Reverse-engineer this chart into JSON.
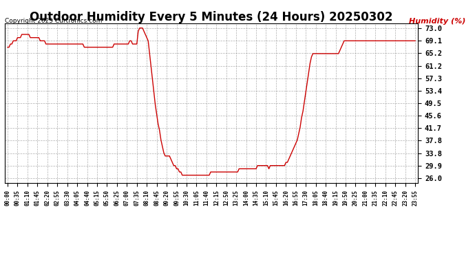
{
  "title": "Outdoor Humidity Every 5 Minutes (24 Hours) 20250302",
  "ylabel": "Humidity (%)",
  "copyright": "Copyright 2025 Curtronics.com",
  "line_color": "#cc0000",
  "ylabel_color": "#cc0000",
  "copyright_color": "#000000",
  "background_color": "#ffffff",
  "grid_color": "#999999",
  "title_fontsize": 12,
  "yticks": [
    26.0,
    29.9,
    33.8,
    37.8,
    41.7,
    45.6,
    49.5,
    53.4,
    57.3,
    61.2,
    65.2,
    69.1,
    73.0
  ],
  "ylim": [
    24.5,
    74.5
  ],
  "xtick_step": 7,
  "humidity_data": [
    67,
    67,
    68,
    68,
    69,
    69,
    69,
    70,
    70,
    70,
    71,
    71,
    71,
    71,
    71,
    71,
    70,
    70,
    70,
    70,
    70,
    70,
    70,
    69,
    69,
    69,
    69,
    68,
    68,
    68,
    68,
    68,
    68,
    68,
    68,
    68,
    68,
    68,
    68,
    68,
    68,
    68,
    68,
    68,
    68,
    68,
    68,
    68,
    68,
    68,
    68,
    68,
    68,
    68,
    67,
    67,
    67,
    67,
    67,
    67,
    67,
    67,
    67,
    67,
    67,
    67,
    67,
    67,
    67,
    67,
    67,
    67,
    67,
    67,
    67,
    68,
    68,
    68,
    68,
    68,
    68,
    68,
    68,
    68,
    68,
    68,
    69,
    69,
    68,
    68,
    68,
    68,
    72,
    73,
    73,
    73,
    72,
    71,
    70,
    69,
    65,
    61,
    57,
    53,
    49,
    46,
    43,
    41,
    38,
    36,
    34,
    33,
    33,
    33,
    33,
    32,
    31,
    30,
    30,
    29,
    29,
    28,
    28,
    27,
    27,
    27,
    27,
    27,
    27,
    27,
    27,
    27,
    27,
    27,
    27,
    27,
    27,
    27,
    27,
    27,
    27,
    27,
    27,
    28,
    28,
    28,
    28,
    28,
    28,
    28,
    28,
    28,
    28,
    28,
    28,
    28,
    28,
    28,
    28,
    28,
    28,
    28,
    28,
    29,
    29,
    29,
    29,
    29,
    29,
    29,
    29,
    29,
    29,
    29,
    29,
    29,
    30,
    30,
    30,
    30,
    30,
    30,
    30,
    30,
    29,
    30,
    30,
    30,
    30,
    30,
    30,
    30,
    30,
    30,
    30,
    30,
    31,
    31,
    32,
    33,
    34,
    35,
    36,
    37,
    38,
    40,
    42,
    45,
    47,
    50,
    53,
    56,
    59,
    62,
    64,
    65,
    65,
    65,
    65,
    65,
    65,
    65,
    65,
    65,
    65,
    65,
    65,
    65,
    65,
    65,
    65,
    65,
    65,
    65,
    66,
    67,
    68,
    69,
    69,
    69,
    69,
    69,
    69,
    69,
    69,
    69,
    69,
    69,
    69,
    69,
    69,
    69,
    69,
    69,
    69,
    69,
    69,
    69,
    69,
    69,
    69,
    69,
    69,
    69,
    69,
    69,
    69,
    69,
    69,
    69,
    69,
    69,
    69,
    69,
    69,
    69,
    69,
    69,
    69,
    69,
    69,
    69,
    69,
    69,
    69,
    69,
    69,
    69
  ]
}
